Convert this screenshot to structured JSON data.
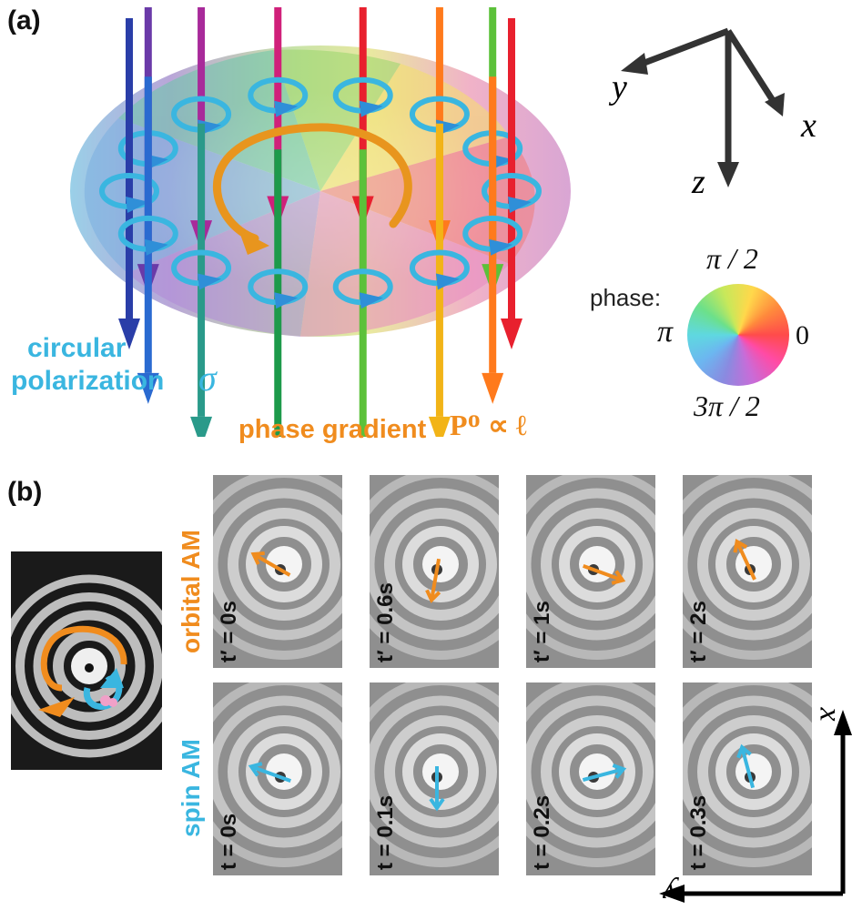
{
  "panel_a": {
    "label": "(a)",
    "axes": {
      "x": "x",
      "y": "y",
      "z": "z"
    },
    "phase_legend": {
      "title": "phase:",
      "top": "π / 2",
      "left": "π",
      "right": "0",
      "bottom": "3π / 2"
    },
    "caption_circular_line1": "circular",
    "caption_circular_line2": "polarization",
    "caption_sigma": "σ",
    "caption_phase": "phase gradient",
    "caption_formula": "Pᴼ ∝ ℓ",
    "colors": {
      "spin": "#3ab6e0",
      "orbital": "#f08c1e"
    }
  },
  "panel_b": {
    "label": "(b)",
    "row_orbital_label": "orbital AM",
    "row_spin_label": "spin AM",
    "orbital_times": [
      "t′ = 0s",
      "t′ = 0.6s",
      "t′ = 1s",
      "t′ = 2s"
    ],
    "spin_times": [
      "t = 0s",
      "t = 0.1s",
      "t = 0.2s",
      "t = 0.3s"
    ],
    "axis_x": "x",
    "axis_y": "y"
  }
}
